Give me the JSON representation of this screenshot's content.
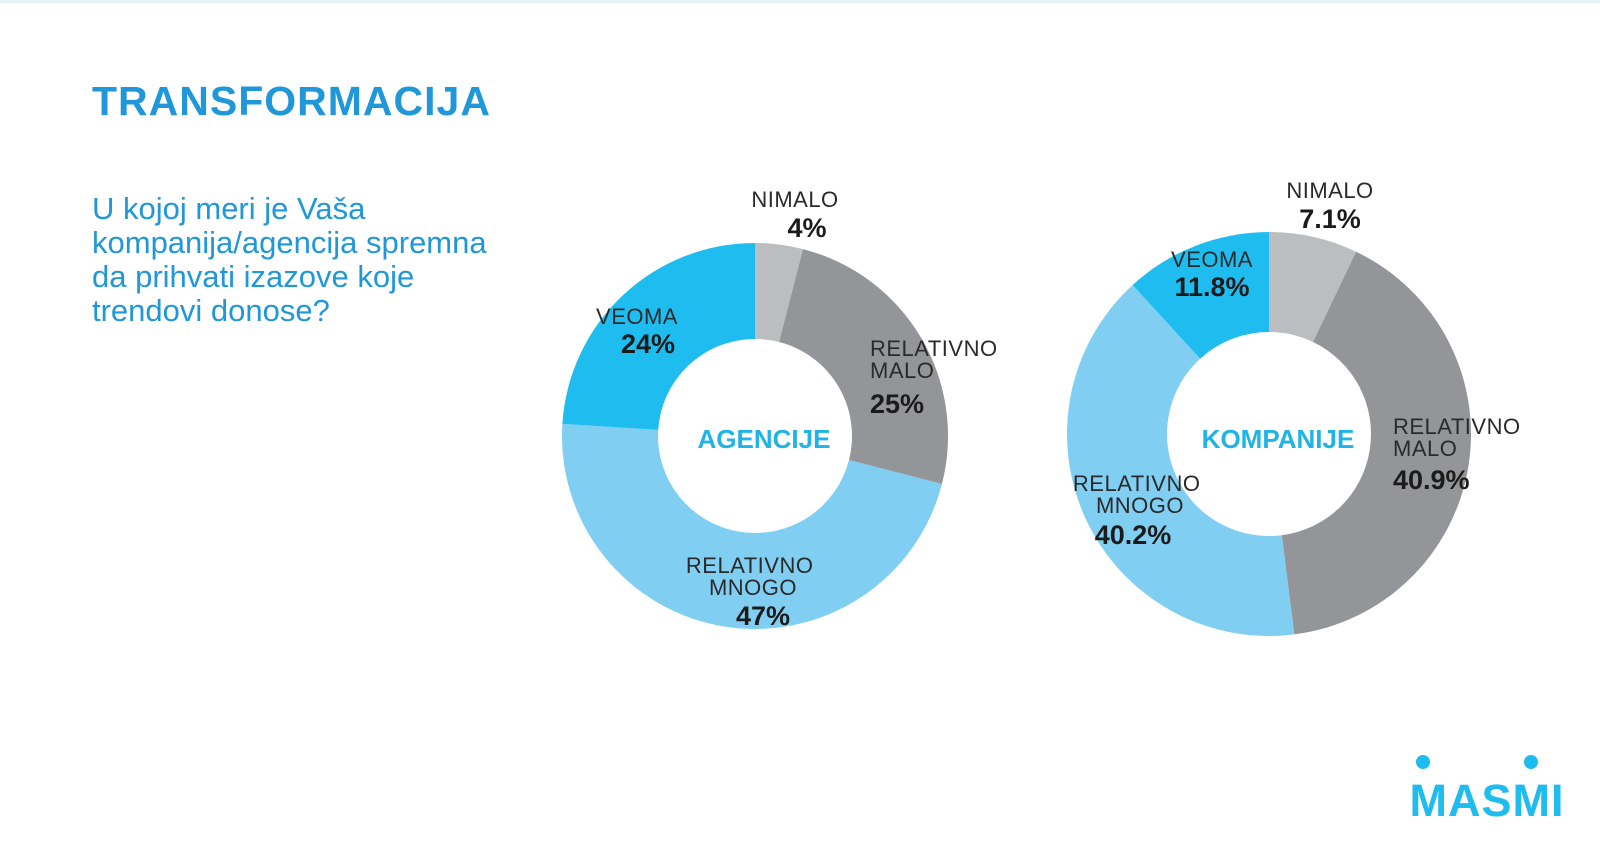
{
  "page": {
    "title": "TRANSFORMACIJA",
    "question": "U kojoj meri je Vaša kompanija/agencija spremna da prihvati izazove koje trendovi donose?",
    "logo_text": "MASMI"
  },
  "colors": {
    "accent": "#1f97d8",
    "nimalo": "#bcbdc0",
    "relativno_malo": "#939598",
    "relativno_mnogo": "#80cff2",
    "veoma": "#1fbcf0"
  },
  "chart_data": [
    {
      "type": "pie",
      "title": "AGENCIJE",
      "slices": [
        {
          "label": "NIMALO",
          "value": 4,
          "display": "4%",
          "color": "#bcbdc0"
        },
        {
          "label": "RELATIVNO MALO",
          "value": 25,
          "display": "25%",
          "color": "#939598"
        },
        {
          "label": "RELATIVNO MNOGO",
          "value": 47,
          "display": "47%",
          "color": "#80cff2"
        },
        {
          "label": "VEOMA",
          "value": 24,
          "display": "24%",
          "color": "#1fbcf0"
        }
      ]
    },
    {
      "type": "pie",
      "title": "KOMPANIJE",
      "slices": [
        {
          "label": "NIMALO",
          "value": 7.1,
          "display": "7.1%",
          "color": "#bcbdc0"
        },
        {
          "label": "RELATIVNO MALO",
          "value": 40.9,
          "display": "40.9%",
          "color": "#939598"
        },
        {
          "label": "RELATIVNO MNOGO",
          "value": 40.2,
          "display": "40.2%",
          "color": "#80cff2"
        },
        {
          "label": "VEOMA",
          "value": 11.8,
          "display": "11.8%",
          "color": "#1fbcf0"
        }
      ]
    }
  ]
}
